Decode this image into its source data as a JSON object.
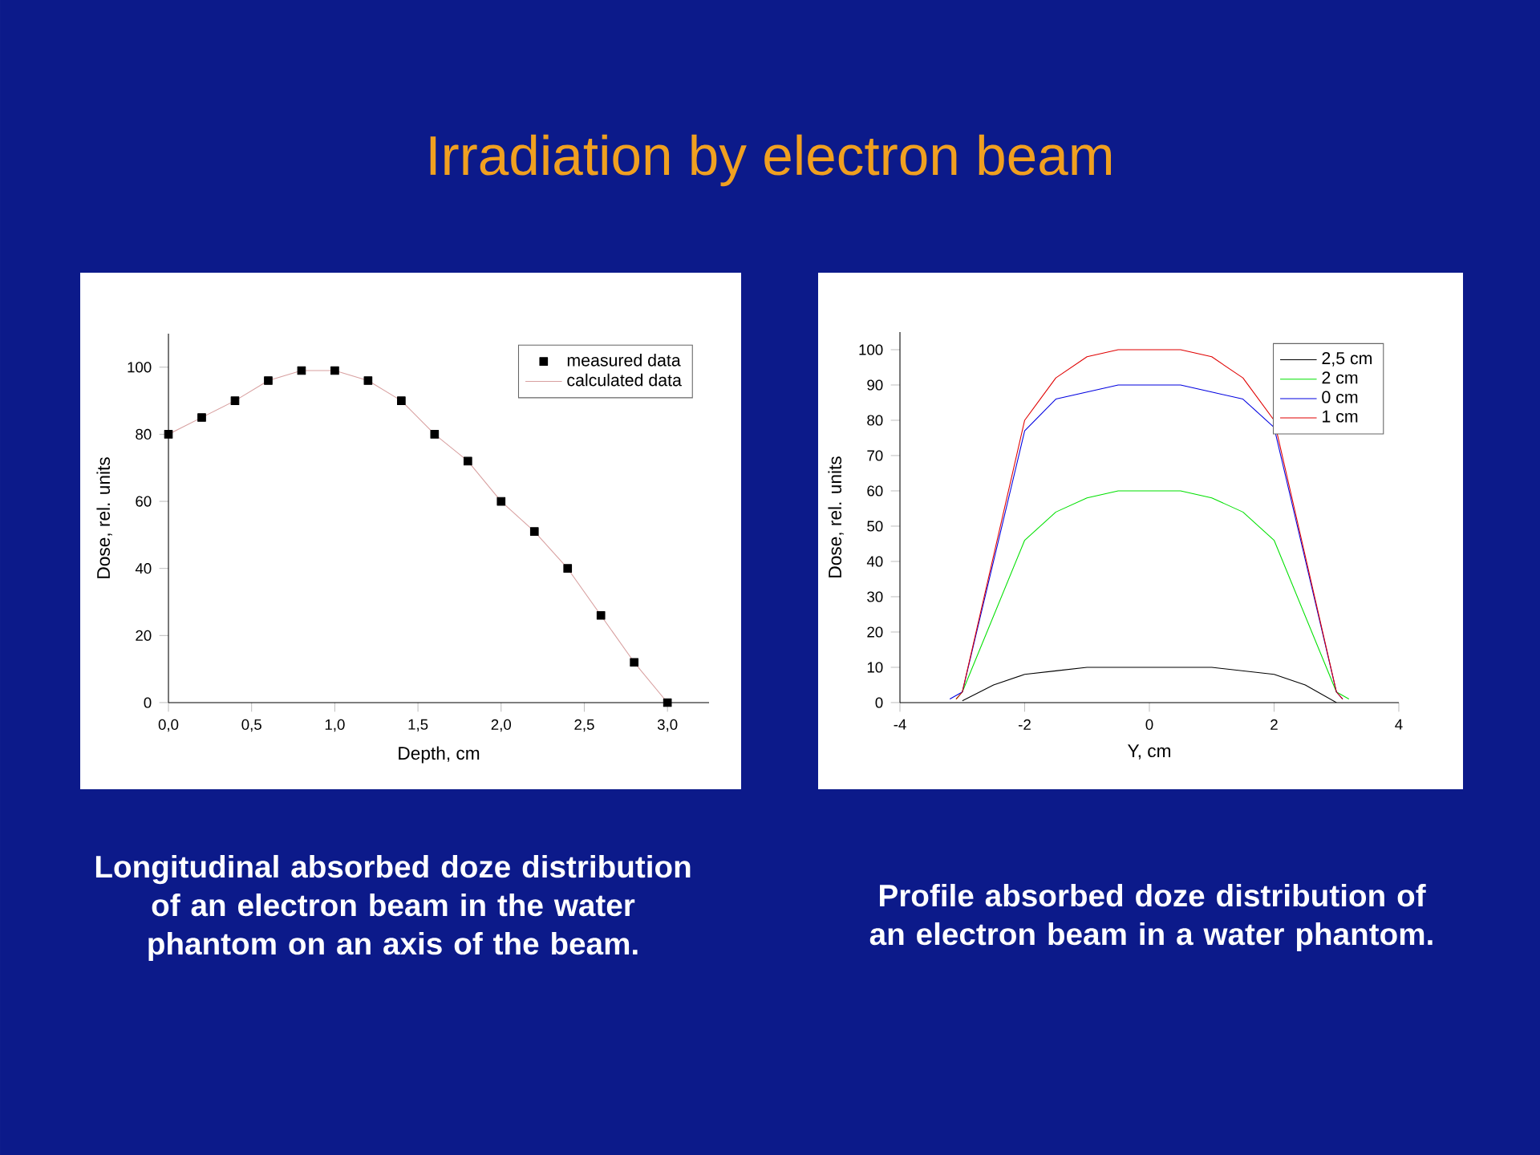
{
  "chart_data": [
    {
      "type": "line",
      "title": "Irradiation by electron beam",
      "xlabel": "Depth, cm",
      "ylabel": "Dose, rel. units",
      "xlim": [
        0,
        3.25
      ],
      "ylim": [
        0,
        110
      ],
      "xticks": [
        {
          "value": 0,
          "label": "0,0"
        },
        {
          "value": 0.5,
          "label": "0,5"
        },
        {
          "value": 1,
          "label": "1,0"
        },
        {
          "value": 1.5,
          "label": "1,5"
        },
        {
          "value": 2,
          "label": "2,0"
        },
        {
          "value": 2.5,
          "label": "2,5"
        },
        {
          "value": 3,
          "label": "3,0"
        }
      ],
      "yticks": [
        0,
        20,
        40,
        60,
        80,
        100
      ],
      "legend": "top right",
      "x": [
        0,
        0.2,
        0.4,
        0.6,
        0.8,
        1.0,
        1.2,
        1.4,
        1.6,
        1.8,
        2.0,
        2.2,
        2.4,
        2.6,
        2.8,
        3.0
      ],
      "series": [
        {
          "name": "measured data",
          "type": "scatter",
          "marker": "square",
          "color": "#000000",
          "values": [
            80,
            85,
            90,
            96,
            99,
            99,
            96,
            90,
            80,
            72,
            60,
            51,
            40,
            26,
            12,
            0
          ]
        },
        {
          "name": "calculated data",
          "type": "line",
          "color": "#d8a0a0",
          "values": [
            80,
            85,
            90,
            96,
            99,
            99,
            96,
            90,
            80,
            72,
            60,
            51,
            40,
            26,
            12,
            0
          ]
        }
      ],
      "annotations": [
        "Longitudinal absorbed doze distribution of an electron beam in the water phantom on an axis of the beam."
      ]
    },
    {
      "type": "line",
      "xlabel": "Y, cm",
      "ylabel": "Dose, rel. units",
      "xlim": [
        -4,
        4
      ],
      "ylim": [
        0,
        105
      ],
      "xticks": [
        -4,
        -2,
        0,
        2,
        4
      ],
      "yticks": [
        0,
        10,
        20,
        30,
        40,
        50,
        60,
        70,
        80,
        90,
        100
      ],
      "legend": "top right",
      "series": [
        {
          "name": "2,5 cm",
          "color": "#000000",
          "x": [
            -3,
            -2.5,
            -2,
            -1.5,
            -1,
            -0.5,
            0,
            0.5,
            1,
            1.5,
            2,
            2.5,
            3
          ],
          "values": [
            0.5,
            5,
            8,
            9,
            10,
            10,
            10,
            10,
            10,
            9,
            8,
            5,
            0
          ]
        },
        {
          "name": "2 cm",
          "color": "#00e000",
          "x": [
            -3.1,
            -3,
            -2,
            -1.5,
            -1,
            -0.5,
            0,
            0.5,
            1,
            1.5,
            2,
            3,
            3.2
          ],
          "values": [
            1,
            3,
            46,
            54,
            58,
            60,
            60,
            60,
            58,
            54,
            46,
            3,
            1
          ]
        },
        {
          "name": "0 cm",
          "color": "#0000e0",
          "x": [
            -3.2,
            -3,
            -2,
            -1.5,
            -1,
            -0.5,
            0,
            0.5,
            1,
            1.5,
            2,
            3,
            3.1
          ],
          "values": [
            1,
            3,
            77,
            86,
            88,
            90,
            90,
            90,
            88,
            86,
            78,
            3,
            1
          ]
        },
        {
          "name": "1 cm",
          "color": "#e00000",
          "x": [
            -3.1,
            -3,
            -2,
            -1.5,
            -1,
            -0.5,
            0,
            0.5,
            1,
            1.5,
            2,
            3,
            3.1
          ],
          "values": [
            1,
            3,
            80,
            92,
            98,
            100,
            100,
            100,
            98,
            92,
            80,
            3,
            1
          ]
        }
      ],
      "annotations": [
        "Profile absorbed doze distribution of an electron beam in a water phantom."
      ]
    }
  ]
}
